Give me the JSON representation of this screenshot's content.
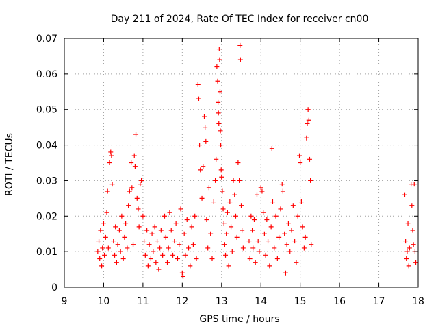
{
  "chart_data": {
    "type": "scatter",
    "title": "Day 211 of 2024, Rate Of TEC Index for receiver cn00",
    "xlabel": "GPS time / hours",
    "ylabel": "ROTI / TECUs",
    "xlim": [
      9,
      18
    ],
    "ylim": [
      0,
      0.07
    ],
    "x_ticks": [
      9,
      10,
      11,
      12,
      13,
      14,
      15,
      16,
      17,
      18
    ],
    "y_ticks": [
      0,
      0.01,
      0.02,
      0.03,
      0.04,
      0.05,
      0.06,
      0.07
    ],
    "x_tick_labels": [
      "9",
      "10",
      "11",
      "12",
      "13",
      "14",
      "15",
      "16",
      "17",
      "18"
    ],
    "y_tick_labels": [
      "0",
      "0.01",
      "0.02",
      "0.03",
      "0.04",
      "0.05",
      "0.06",
      "0.07"
    ],
    "grid": true,
    "marker": "+",
    "color": "#ff0000",
    "series": [
      {
        "name": "cn00",
        "points": [
          [
            9.85,
            0.01
          ],
          [
            9.88,
            0.013
          ],
          [
            9.9,
            0.008
          ],
          [
            9.92,
            0.016
          ],
          [
            9.95,
            0.006
          ],
          [
            9.97,
            0.011
          ],
          [
            10.0,
            0.018
          ],
          [
            10.02,
            0.009
          ],
          [
            10.05,
            0.014
          ],
          [
            10.08,
            0.021
          ],
          [
            10.1,
            0.027
          ],
          [
            10.12,
            0.011
          ],
          [
            10.15,
            0.035
          ],
          [
            10.18,
            0.038
          ],
          [
            10.2,
            0.037
          ],
          [
            10.22,
            0.029
          ],
          [
            10.25,
            0.013
          ],
          [
            10.28,
            0.009
          ],
          [
            10.3,
            0.017
          ],
          [
            10.33,
            0.007
          ],
          [
            10.36,
            0.012
          ],
          [
            10.4,
            0.016
          ],
          [
            10.43,
            0.01
          ],
          [
            10.46,
            0.02
          ],
          [
            10.5,
            0.008
          ],
          [
            10.53,
            0.014
          ],
          [
            10.56,
            0.018
          ],
          [
            10.6,
            0.011
          ],
          [
            10.63,
            0.023
          ],
          [
            10.66,
            0.027
          ],
          [
            10.7,
            0.035
          ],
          [
            10.72,
            0.028
          ],
          [
            10.75,
            0.012
          ],
          [
            10.78,
            0.037
          ],
          [
            10.8,
            0.034
          ],
          [
            10.82,
            0.043
          ],
          [
            10.85,
            0.025
          ],
          [
            10.88,
            0.022
          ],
          [
            10.9,
            0.017
          ],
          [
            10.93,
            0.029
          ],
          [
            10.96,
            0.03
          ],
          [
            11.0,
            0.02
          ],
          [
            11.03,
            0.013
          ],
          [
            11.06,
            0.009
          ],
          [
            11.1,
            0.016
          ],
          [
            11.13,
            0.006
          ],
          [
            11.16,
            0.012
          ],
          [
            11.2,
            0.008
          ],
          [
            11.23,
            0.015
          ],
          [
            11.26,
            0.01
          ],
          [
            11.3,
            0.017
          ],
          [
            11.33,
            0.007
          ],
          [
            11.36,
            0.013
          ],
          [
            11.4,
            0.005
          ],
          [
            11.43,
            0.011
          ],
          [
            11.46,
            0.016
          ],
          [
            11.5,
            0.009
          ],
          [
            11.55,
            0.02
          ],
          [
            11.58,
            0.014
          ],
          [
            11.62,
            0.007
          ],
          [
            11.65,
            0.011
          ],
          [
            11.68,
            0.021
          ],
          [
            11.72,
            0.016
          ],
          [
            11.76,
            0.009
          ],
          [
            11.8,
            0.013
          ],
          [
            11.84,
            0.018
          ],
          [
            11.88,
            0.008
          ],
          [
            11.92,
            0.012
          ],
          [
            11.96,
            0.022
          ],
          [
            12.0,
            0.004
          ],
          [
            12.02,
            0.003
          ],
          [
            12.05,
            0.015
          ],
          [
            12.08,
            0.009
          ],
          [
            12.12,
            0.019
          ],
          [
            12.16,
            0.011
          ],
          [
            12.2,
            0.006
          ],
          [
            12.24,
            0.017
          ],
          [
            12.28,
            0.012
          ],
          [
            12.32,
            0.02
          ],
          [
            12.36,
            0.008
          ],
          [
            12.4,
            0.057
          ],
          [
            12.42,
            0.053
          ],
          [
            12.44,
            0.04
          ],
          [
            12.46,
            0.033
          ],
          [
            12.5,
            0.025
          ],
          [
            12.53,
            0.034
          ],
          [
            12.56,
            0.048
          ],
          [
            12.58,
            0.045
          ],
          [
            12.6,
            0.041
          ],
          [
            12.62,
            0.019
          ],
          [
            12.65,
            0.011
          ],
          [
            12.68,
            0.028
          ],
          [
            12.72,
            0.015
          ],
          [
            12.76,
            0.008
          ],
          [
            12.8,
            0.024
          ],
          [
            12.84,
            0.03
          ],
          [
            12.86,
            0.036
          ],
          [
            12.88,
            0.062
          ],
          [
            12.9,
            0.058
          ],
          [
            12.91,
            0.052
          ],
          [
            12.92,
            0.049
          ],
          [
            12.93,
            0.046
          ],
          [
            12.94,
            0.067
          ],
          [
            12.95,
            0.064
          ],
          [
            12.96,
            0.055
          ],
          [
            12.97,
            0.044
          ],
          [
            12.98,
            0.04
          ],
          [
            12.99,
            0.033
          ],
          [
            13.0,
            0.031
          ],
          [
            13.02,
            0.027
          ],
          [
            13.04,
            0.022
          ],
          [
            13.06,
            0.018
          ],
          [
            13.08,
            0.012
          ],
          [
            13.1,
            0.009
          ],
          [
            13.12,
            0.015
          ],
          [
            13.15,
            0.021
          ],
          [
            13.18,
            0.006
          ],
          [
            13.21,
            0.024
          ],
          [
            13.24,
            0.017
          ],
          [
            13.27,
            0.01
          ],
          [
            13.3,
            0.03
          ],
          [
            13.33,
            0.026
          ],
          [
            13.36,
            0.02
          ],
          [
            13.39,
            0.014
          ],
          [
            13.42,
            0.035
          ],
          [
            13.45,
            0.03
          ],
          [
            13.47,
            0.068
          ],
          [
            13.48,
            0.064
          ],
          [
            13.5,
            0.023
          ],
          [
            13.52,
            0.016
          ],
          [
            13.55,
            0.011
          ],
          [
            13.7,
            0.013
          ],
          [
            13.72,
            0.008
          ],
          [
            13.75,
            0.02
          ],
          [
            13.78,
            0.016
          ],
          [
            13.8,
            0.011
          ],
          [
            13.83,
            0.019
          ],
          [
            13.86,
            0.007
          ],
          [
            13.9,
            0.026
          ],
          [
            13.93,
            0.013
          ],
          [
            13.96,
            0.01
          ],
          [
            14.0,
            0.028
          ],
          [
            14.03,
            0.027
          ],
          [
            14.06,
            0.021
          ],
          [
            14.09,
            0.015
          ],
          [
            14.12,
            0.009
          ],
          [
            14.15,
            0.019
          ],
          [
            14.18,
            0.013
          ],
          [
            14.22,
            0.006
          ],
          [
            14.26,
            0.017
          ],
          [
            14.28,
            0.039
          ],
          [
            14.3,
            0.024
          ],
          [
            14.34,
            0.011
          ],
          [
            14.38,
            0.02
          ],
          [
            14.42,
            0.008
          ],
          [
            14.46,
            0.014
          ],
          [
            14.5,
            0.022
          ],
          [
            14.54,
            0.029
          ],
          [
            14.56,
            0.027
          ],
          [
            14.6,
            0.015
          ],
          [
            14.63,
            0.004
          ],
          [
            14.66,
            0.012
          ],
          [
            14.7,
            0.018
          ],
          [
            14.74,
            0.01
          ],
          [
            14.78,
            0.016
          ],
          [
            14.82,
            0.023
          ],
          [
            14.86,
            0.013
          ],
          [
            14.9,
            0.007
          ],
          [
            14.94,
            0.02
          ],
          [
            14.98,
            0.037
          ],
          [
            15.0,
            0.035
          ],
          [
            15.03,
            0.024
          ],
          [
            15.06,
            0.017
          ],
          [
            15.1,
            0.011
          ],
          [
            15.13,
            0.014
          ],
          [
            15.16,
            0.042
          ],
          [
            15.18,
            0.046
          ],
          [
            15.2,
            0.05
          ],
          [
            15.22,
            0.047
          ],
          [
            15.24,
            0.036
          ],
          [
            15.26,
            0.03
          ],
          [
            15.28,
            0.012
          ],
          [
            17.66,
            0.026
          ],
          [
            17.68,
            0.013
          ],
          [
            17.7,
            0.008
          ],
          [
            17.72,
            0.01
          ],
          [
            17.74,
            0.018
          ],
          [
            17.76,
            0.006
          ],
          [
            17.78,
            0.011
          ],
          [
            17.82,
            0.029
          ],
          [
            17.84,
            0.023
          ],
          [
            17.86,
            0.016
          ],
          [
            17.88,
            0.012
          ],
          [
            17.9,
            0.029
          ],
          [
            17.92,
            0.01
          ],
          [
            17.94,
            0.007
          ]
        ]
      }
    ]
  }
}
